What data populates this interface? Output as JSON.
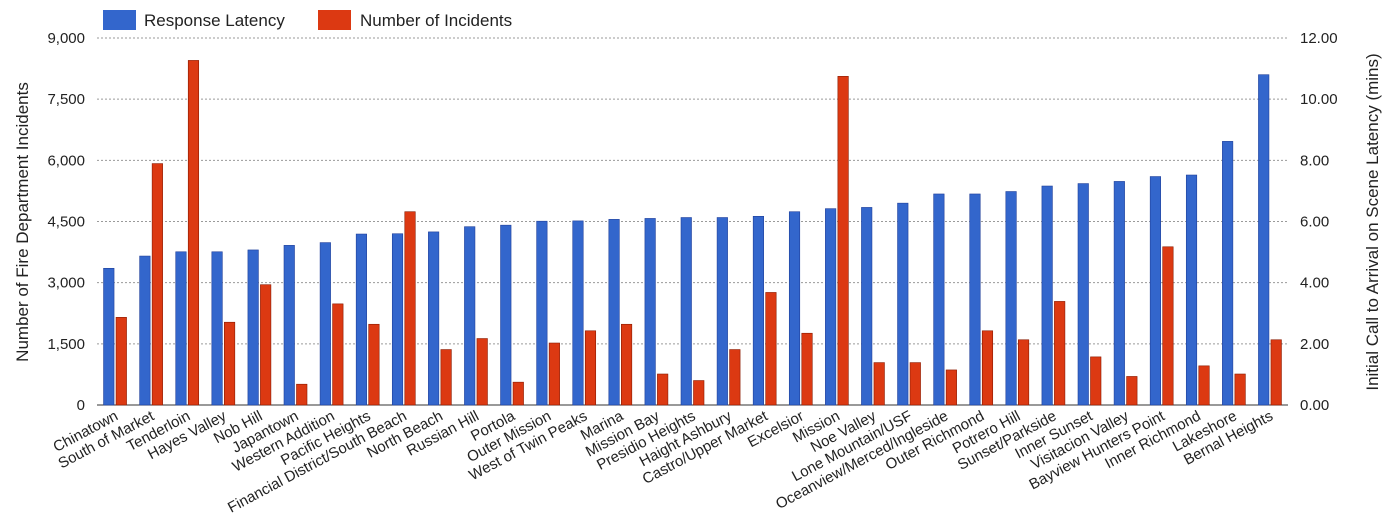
{
  "chart_data": {
    "type": "bar",
    "legend_position": "top-left",
    "grid": true,
    "categories": [
      "Chinatown",
      "South of Market",
      "Tenderloin",
      "Hayes Valley",
      "Nob Hill",
      "Japantown",
      "Western Addition",
      "Pacific Heights",
      "Financial District/South Beach",
      "North Beach",
      "Russian Hill",
      "Portola",
      "Outer Mission",
      "West of Twin Peaks",
      "Marina",
      "Mission Bay",
      "Presidio Heights",
      "Haight Ashbury",
      "Castro/Upper Market",
      "Excelsior",
      "Mission",
      "Noe Valley",
      "Lone Mountain/USF",
      "Oceanview/Merced/Ingleside",
      "Outer Richmond",
      "Potrero Hill",
      "Sunset/Parkside",
      "Inner Sunset",
      "Visitacion Valley",
      "Bayview Hunters Point",
      "Inner Richmond",
      "Lakeshore",
      "Bernal Heights"
    ],
    "series": [
      {
        "name": "Response Latency",
        "axis": "right",
        "color": "#3366cc",
        "values": [
          4.47,
          4.87,
          5.01,
          5.01,
          5.07,
          5.22,
          5.31,
          5.59,
          5.6,
          5.66,
          5.83,
          5.88,
          6.01,
          6.02,
          6.07,
          6.1,
          6.13,
          6.13,
          6.17,
          6.32,
          6.42,
          6.46,
          6.6,
          6.9,
          6.9,
          6.98,
          7.16,
          7.24,
          7.31,
          7.47,
          7.52,
          8.62,
          10.8
        ]
      },
      {
        "name": "Number of Incidents",
        "axis": "left",
        "color": "#dc3912",
        "values": [
          2150,
          5920,
          8450,
          2030,
          2950,
          510,
          2480,
          1980,
          4740,
          1360,
          1630,
          560,
          1520,
          1820,
          1980,
          760,
          600,
          1360,
          2760,
          1760,
          8060,
          1040,
          1040,
          860,
          1820,
          1600,
          2540,
          1180,
          700,
          3880,
          960,
          760,
          1600
        ]
      }
    ],
    "y_left": {
      "label": "Number of Fire Department Incidents",
      "range": [
        0,
        9000
      ],
      "ticks": [
        "0",
        "1,500",
        "3,000",
        "4,500",
        "6,000",
        "7,500",
        "9,000"
      ]
    },
    "y_right": {
      "label": "Initial Call to Arrival on Scene Latency (mins)",
      "range": [
        0,
        12
      ],
      "ticks": [
        "0.00",
        "2.00",
        "4.00",
        "6.00",
        "8.00",
        "10.00",
        "12.00"
      ]
    }
  }
}
